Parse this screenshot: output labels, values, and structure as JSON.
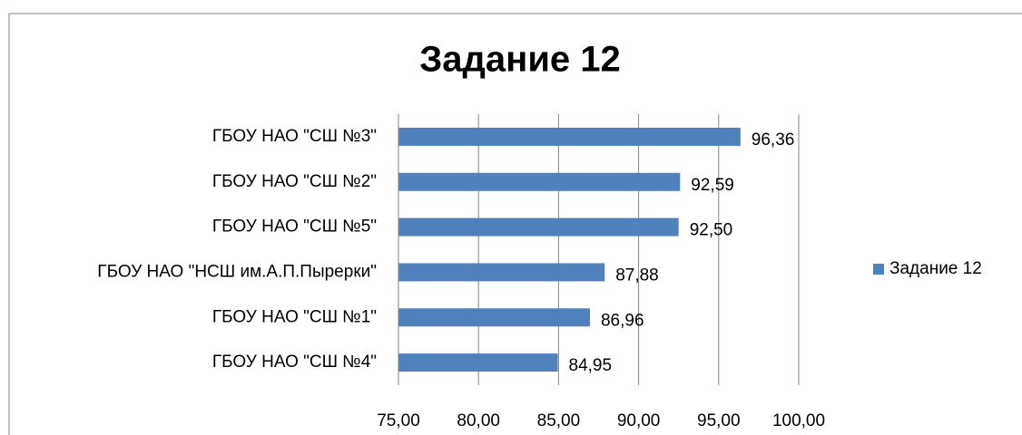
{
  "chart_data": {
    "type": "bar",
    "orientation": "horizontal",
    "title": "Задание 12",
    "categories": [
      "ГБОУ НАО \"СШ №3\"",
      "ГБОУ НАО \"СШ №2\"",
      "ГБОУ НАО \"СШ №5\"",
      "ГБОУ НАО \"НСШ им.А.П.Пырерки\"",
      "ГБОУ НАО \"СШ №1\"",
      "ГБОУ НАО \"СШ №4\""
    ],
    "series": [
      {
        "name": "Задание 12",
        "color": "#4f81bd",
        "values": [
          96.36,
          92.59,
          92.5,
          87.88,
          86.96,
          84.95
        ],
        "value_labels": [
          "96,36",
          "92,59",
          "92,50",
          "87,88",
          "86,96",
          "84,95"
        ]
      }
    ],
    "xlim": [
      75,
      100
    ],
    "xticks": [
      {
        "value": 75,
        "label": "75,00"
      },
      {
        "value": 80,
        "label": "80,00"
      },
      {
        "value": 85,
        "label": "85,00"
      },
      {
        "value": 90,
        "label": "90,00"
      },
      {
        "value": 95,
        "label": "95,00"
      },
      {
        "value": 100,
        "label": "100,00"
      }
    ],
    "grid": true,
    "legend": "right"
  }
}
